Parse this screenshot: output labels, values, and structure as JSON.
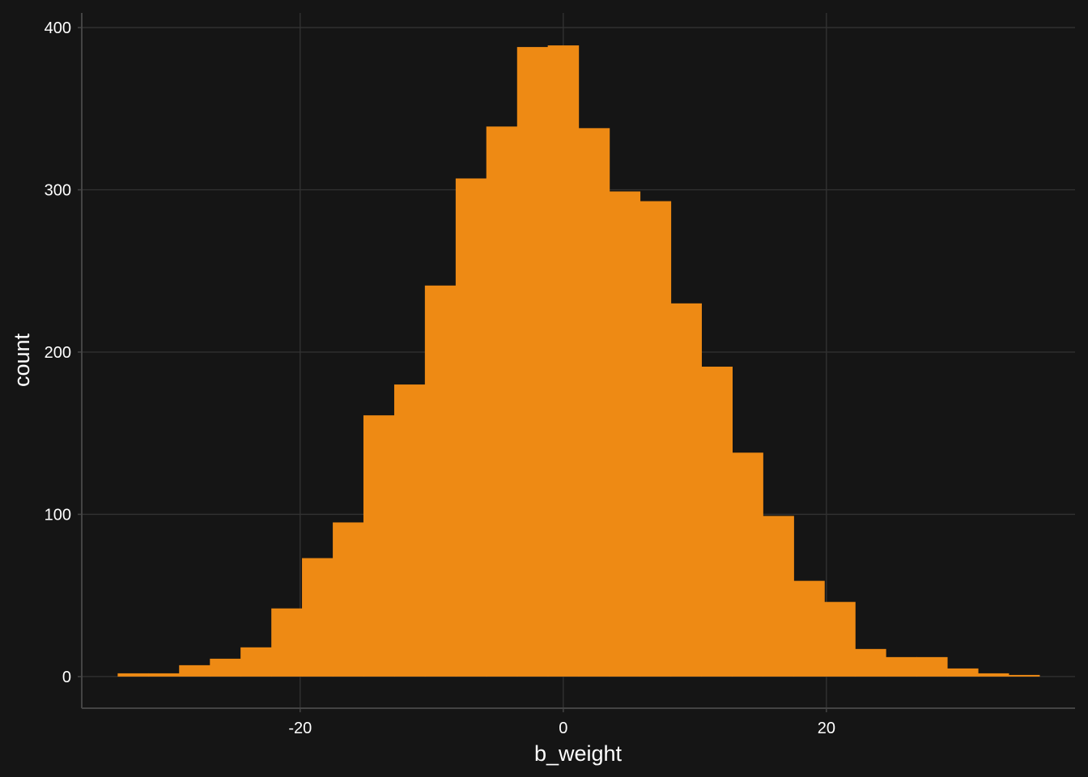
{
  "chart_data": {
    "type": "bar",
    "title": "",
    "xlabel": "b_weight",
    "ylabel": "count",
    "xlim": [
      -36.6,
      38.9
    ],
    "ylim": [
      -19.5,
      409
    ],
    "x_ticks": [
      -20,
      0,
      20
    ],
    "x_tick_labels": [
      "-20",
      "0",
      "20"
    ],
    "y_ticks": [
      0,
      100,
      200,
      300,
      400
    ],
    "y_tick_labels": [
      "0",
      "100",
      "200",
      "300",
      "400"
    ],
    "grid": true,
    "bin_width": 2.335,
    "bin_starts": [
      -33.87,
      -31.53,
      -29.2,
      -26.86,
      -24.53,
      -22.19,
      -19.86,
      -17.52,
      -15.19,
      -12.85,
      -10.52,
      -8.18,
      -5.85,
      -3.51,
      -1.18,
      1.16,
      3.49,
      5.83,
      8.16,
      10.5,
      12.83,
      15.17,
      17.5,
      19.84,
      22.17,
      24.51,
      26.84,
      29.18,
      31.51,
      33.85
    ],
    "values": [
      2,
      2,
      7,
      11,
      18,
      42,
      73,
      95,
      161,
      180,
      241,
      307,
      339,
      388,
      389,
      338,
      299,
      293,
      230,
      191,
      138,
      99,
      59,
      46,
      17,
      12,
      12,
      5,
      2,
      1
    ],
    "colors": {
      "background": "#151515",
      "bar": "#ee8a14",
      "grid": "#333333",
      "axis": "#444444",
      "text": "#ffffff"
    }
  }
}
